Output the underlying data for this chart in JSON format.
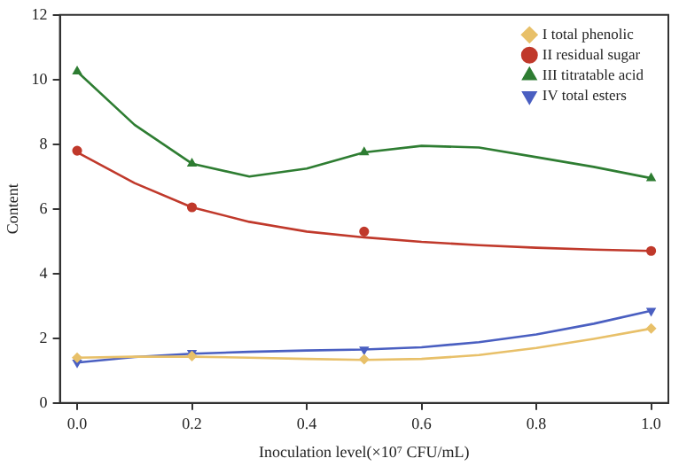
{
  "chart_data": {
    "type": "scatter",
    "xlabel": "Inoculation level(×10⁷ CFU/mL)",
    "ylabel": "Content",
    "x": [
      0,
      0.2,
      0.5,
      1.0
    ],
    "xlim": [
      -0.03,
      1.03
    ],
    "xticks": [
      {
        "value": 0,
        "label": "0.0"
      },
      {
        "value": 0.2,
        "label": "0.2"
      },
      {
        "value": 0.4,
        "label": "0.4"
      },
      {
        "value": 0.6,
        "label": "0.6"
      },
      {
        "value": 0.8,
        "label": "0.8"
      },
      {
        "value": 1,
        "label": "1.0"
      }
    ],
    "ylim": [
      0,
      12
    ],
    "yticks": [
      0,
      2,
      4,
      6,
      8,
      10,
      12
    ],
    "grid": false,
    "legend": "top right",
    "series": [
      {
        "type": "scatter",
        "name": "I total phenolic",
        "color": "#e8c069",
        "marker": "diamond",
        "values": [
          1.4,
          1.45,
          1.35,
          2.3
        ]
      },
      {
        "type": "scatter",
        "name": "II residual sugar",
        "color": "#c0392b",
        "marker": "circle",
        "values": [
          7.8,
          6.05,
          5.3,
          4.7
        ]
      },
      {
        "type": "scatter",
        "name": "III titratable acid",
        "color": "#2e7d32",
        "marker": "triangle",
        "values": [
          10.25,
          7.4,
          7.75,
          6.95
        ]
      },
      {
        "type": "scatter",
        "name": "IV total esters",
        "color": "#4a5fc1",
        "marker": "triangle-down",
        "values": [
          1.25,
          1.55,
          1.65,
          2.85
        ]
      },
      {
        "type": "line",
        "color": "#e8c069",
        "marker": "none",
        "x": [
          0,
          0.1,
          0.2,
          0.3,
          0.4,
          0.5,
          0.6,
          0.7,
          0.8,
          0.9,
          1.0
        ],
        "values": [
          1.4,
          1.43,
          1.43,
          1.4,
          1.36,
          1.33,
          1.36,
          1.48,
          1.7,
          1.98,
          2.3
        ]
      },
      {
        "type": "line",
        "color": "#c0392b",
        "marker": "none",
        "x": [
          0,
          0.1,
          0.2,
          0.3,
          0.4,
          0.5,
          0.6,
          0.7,
          0.8,
          0.9,
          1.0
        ],
        "values": [
          7.75,
          6.8,
          6.05,
          5.6,
          5.3,
          5.12,
          4.98,
          4.88,
          4.8,
          4.74,
          4.7
        ]
      },
      {
        "type": "line",
        "color": "#2e7d32",
        "marker": "none",
        "x": [
          0,
          0.1,
          0.2,
          0.3,
          0.4,
          0.5,
          0.6,
          0.7,
          0.8,
          0.9,
          1.0
        ],
        "values": [
          10.25,
          8.6,
          7.4,
          7.0,
          7.25,
          7.75,
          7.95,
          7.9,
          7.6,
          7.3,
          6.95
        ]
      },
      {
        "type": "line",
        "color": "#4a5fc1",
        "marker": "none",
        "x": [
          0,
          0.1,
          0.2,
          0.3,
          0.4,
          0.5,
          0.6,
          0.7,
          0.8,
          0.9,
          1.0
        ],
        "values": [
          1.25,
          1.42,
          1.52,
          1.58,
          1.62,
          1.65,
          1.72,
          1.88,
          2.12,
          2.45,
          2.85
        ]
      }
    ]
  }
}
